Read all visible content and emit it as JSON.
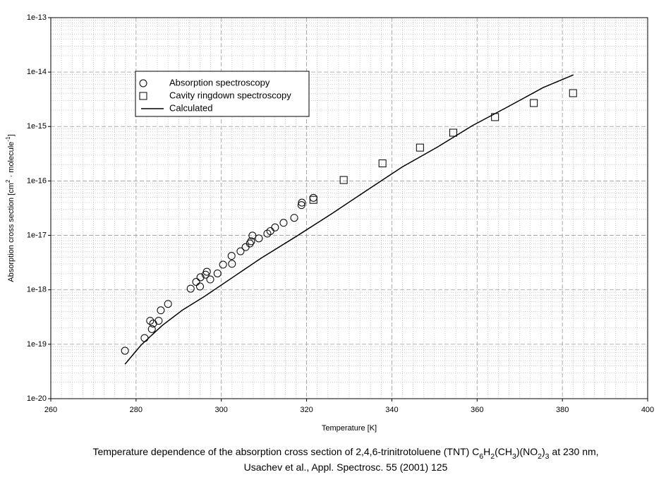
{
  "chart_data": {
    "type": "scatter",
    "xlabel": "Temperature [K]",
    "ylabel": [
      {
        "text": "Absorption cross section [cm"
      },
      {
        "text": "2",
        "sup": true
      },
      {
        "text": " · molecule"
      },
      {
        "text": "-1",
        "sup": true
      },
      {
        "text": "]"
      }
    ],
    "caption": [
      [
        {
          "text": "Temperature dependence of the absorption cross section of 2,4,6-trinitrotoluene (TNT) C"
        },
        {
          "text": "6",
          "sub": true
        },
        {
          "text": "H"
        },
        {
          "text": "2",
          "sub": true
        },
        {
          "text": "(CH"
        },
        {
          "text": "3",
          "sub": true
        },
        {
          "text": ")(NO"
        },
        {
          "text": "2",
          "sub": true
        },
        {
          "text": ")"
        },
        {
          "text": "3",
          "sub": true
        },
        {
          "text": " at 230 nm,"
        }
      ],
      [
        {
          "text": "Usachev et al., Appl. Spectrosc. 55 (2001) 125"
        }
      ]
    ],
    "xlim": [
      260,
      400
    ],
    "xticks": [
      260,
      280,
      300,
      320,
      340,
      360,
      380,
      400
    ],
    "ylim": [
      1e-20,
      1e-13
    ],
    "yticks": [
      {
        "value": 1e-20,
        "label": "1e-20"
      },
      {
        "value": 1e-19,
        "label": "1e-19"
      },
      {
        "value": 1e-18,
        "label": "1e-18"
      },
      {
        "value": 1e-17,
        "label": "1e-17"
      },
      {
        "value": 1e-16,
        "label": "1e-16"
      },
      {
        "value": 1e-15,
        "label": "1e-15"
      },
      {
        "value": 1e-14,
        "label": "1e-14"
      },
      {
        "value": 1e-13,
        "label": "1e-13"
      }
    ],
    "ylog": true,
    "grid": true,
    "legend": "upper left",
    "series": [
      {
        "name": "Absorption spectroscopy",
        "marker": "circle",
        "color": "#000000",
        "x": [
          277.4,
          282.0,
          283.3,
          283.7,
          284.0,
          285.3,
          285.8,
          287.5,
          292.8,
          294.1,
          295.0,
          295.1,
          296.3,
          296.6,
          297.4,
          299.1,
          300.4,
          302.4,
          302.5,
          304.5,
          305.7,
          306.7,
          307.0,
          307.3,
          308.8,
          310.8,
          311.5,
          312.6,
          314.6,
          317.1,
          318.8,
          318.9,
          321.6
        ],
        "values": [
          7.6e-20,
          1.3e-19,
          2.7e-19,
          1.9e-19,
          2.4e-19,
          2.7e-19,
          4.2e-19,
          5.5e-19,
          1.05e-18,
          1.4e-18,
          1.15e-18,
          1.7e-18,
          1.9e-18,
          2.15e-18,
          1.55e-18,
          2e-18,
          2.9e-18,
          4.2e-18,
          3e-18,
          5.1e-18,
          6.1e-18,
          7.1e-18,
          7.8e-18,
          9.9e-18,
          8.8e-18,
          1.08e-17,
          1.2e-17,
          1.4e-17,
          1.7e-17,
          2.1e-17,
          3.6e-17,
          4e-17,
          4.9e-17
        ]
      },
      {
        "name": "Cavity ringdown spectroscopy",
        "marker": "square",
        "color": "#000000",
        "x": [
          321.6,
          328.7,
          337.8,
          346.6,
          354.4,
          364.2,
          373.3,
          382.5
        ],
        "values": [
          4.5e-17,
          1.04e-16,
          2.1e-16,
          4.1e-16,
          7.7e-16,
          1.49e-15,
          2.7e-15,
          4.1e-15
        ]
      },
      {
        "name": "Calculated",
        "marker": "line",
        "color": "#000000",
        "x": [
          277.4,
          281.2,
          286.1,
          290.8,
          296.1,
          302.7,
          309.3,
          317.6,
          325.9,
          334.1,
          342.4,
          350.7,
          358.9,
          367.2,
          375.5,
          382.6
        ],
        "values": [
          4.3e-20,
          9.7e-20,
          2.2e-19,
          4.2e-19,
          7.6e-19,
          1.7e-18,
          3.8e-18,
          9.6e-18,
          2.5e-17,
          6.7e-17,
          1.8e-16,
          4.2e-16,
          1.04e-15,
          2.3e-15,
          5.2e-15,
          8.9e-15
        ]
      }
    ]
  }
}
